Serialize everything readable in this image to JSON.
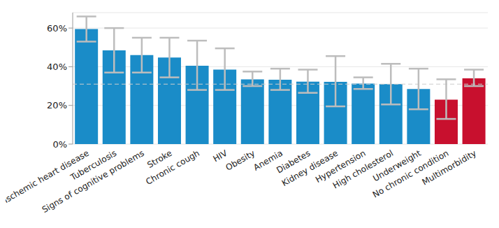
{
  "chart_data": {
    "type": "bar",
    "categories": [
      "Ischemic heart disease",
      "Tuberculosis",
      "Signs of cognitive problems",
      "Stroke",
      "Chronic cough",
      "HIV",
      "Obesity",
      "Anemia",
      "Diabetes",
      "Kidney disease",
      "Hypertension",
      "High cholesterol",
      "Underweight",
      "No chronic condition",
      "Multimorbidity"
    ],
    "values": [
      59.5,
      48.5,
      46,
      44.8,
      40.5,
      38.5,
      33.5,
      33.3,
      32.3,
      32.2,
      31.3,
      31,
      28.5,
      23,
      34
    ],
    "error_low": [
      53,
      37,
      37,
      34.5,
      28,
      28,
      30,
      28,
      26.5,
      19.5,
      28.5,
      20.5,
      18,
      13,
      30
    ],
    "error_high": [
      66,
      60,
      55,
      55,
      53.5,
      49.5,
      37.5,
      39,
      38.5,
      45.5,
      34.5,
      41.5,
      39,
      33.5,
      38.5
    ],
    "colors": [
      "#1a8cc8",
      "#1a8cc8",
      "#1a8cc8",
      "#1a8cc8",
      "#1a8cc8",
      "#1a8cc8",
      "#1a8cc8",
      "#1a8cc8",
      "#1a8cc8",
      "#1a8cc8",
      "#1a8cc8",
      "#1a8cc8",
      "#1a8cc8",
      "#c8102e",
      "#c8102e"
    ],
    "reference_line": 31,
    "ylim": [
      0,
      68
    ],
    "yticks": [
      {
        "value": 0,
        "label": "0%"
      },
      {
        "value": 20,
        "label": "20%"
      },
      {
        "value": 40,
        "label": "40%"
      },
      {
        "value": 60,
        "label": "60%"
      }
    ],
    "grid": true
  }
}
